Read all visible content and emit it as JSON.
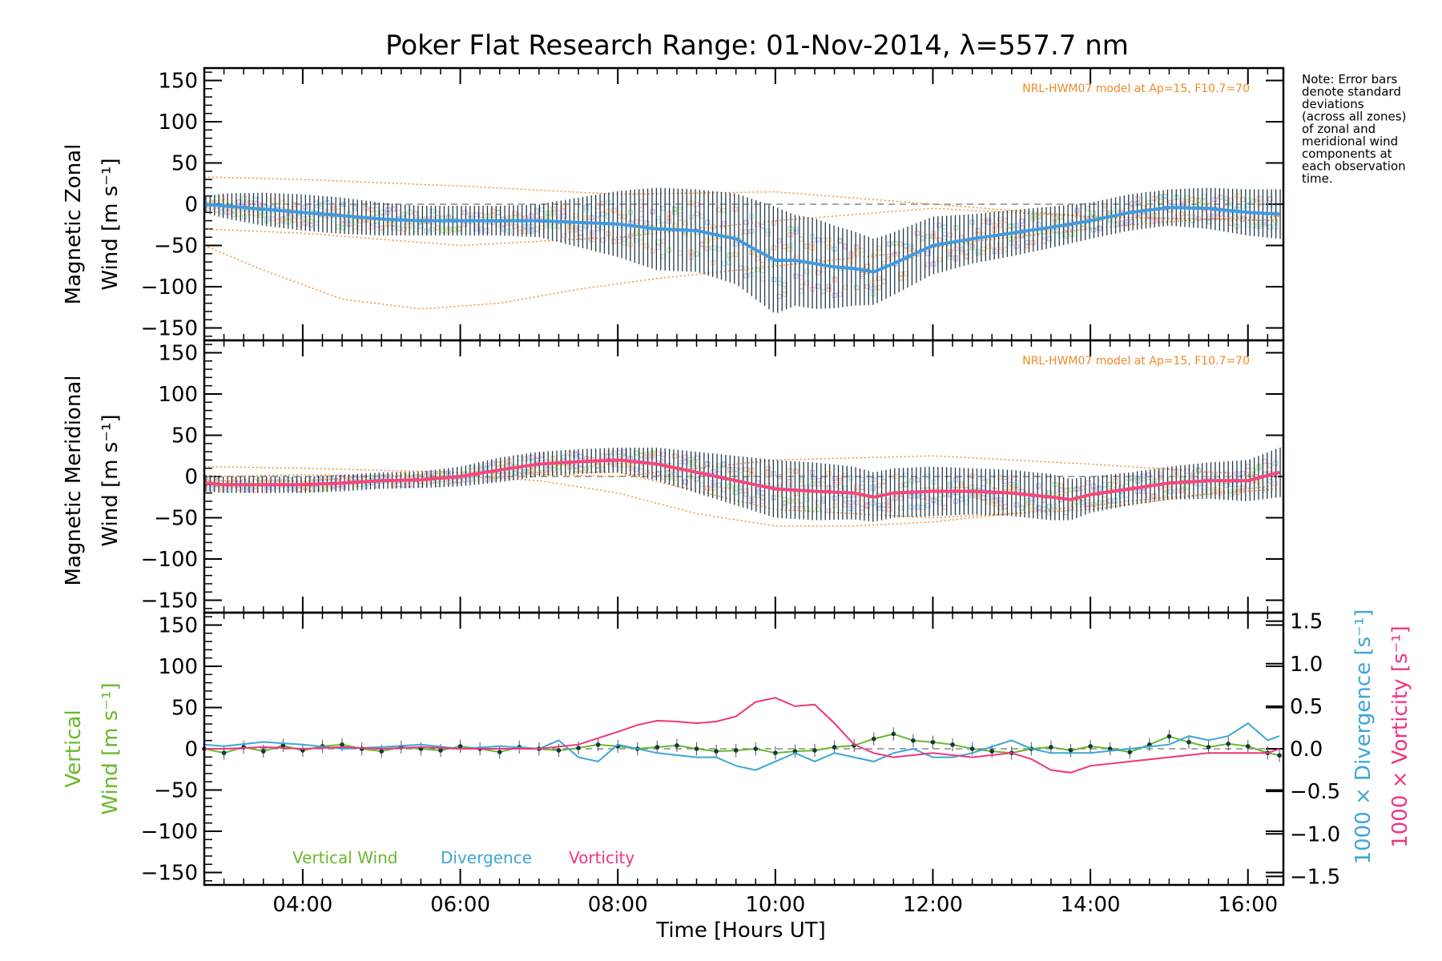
{
  "title": "Poker Flat Research Range: 01-Nov-2014, λ=557.7 nm",
  "note_lines": [
    "Note: Error bars",
    "denote standard",
    "deviations",
    "(across all zones)",
    "of zonal and",
    "meridional wind",
    "components at",
    "each observation",
    "time."
  ],
  "colors": {
    "zonal": "#3f9be0",
    "meridional": "#f7467c",
    "vertical": "#6ab82c",
    "divergence": "#3ea5d8",
    "vorticity": "#f0357e",
    "model": "#f08a2a",
    "errorbar": "#223a4a"
  },
  "chart_data": [
    {
      "type": "line",
      "panel": "zonal",
      "ylabel_line1": "Magnetic Zonal",
      "ylabel_line2": "Wind [m s⁻¹]",
      "ylim": [
        -165,
        165
      ],
      "yticks": [
        150,
        100,
        50,
        0,
        -50,
        -100,
        -150
      ],
      "model_label": "NRL-HWM07 model at Ap=15, F10.7=70",
      "x": [
        2.75,
        3.0,
        3.5,
        4.0,
        4.5,
        5.0,
        5.5,
        6.0,
        6.5,
        7.0,
        7.5,
        8.0,
        8.5,
        9.0,
        9.5,
        9.75,
        10.0,
        10.25,
        10.5,
        10.75,
        11.0,
        11.25,
        11.5,
        12.0,
        12.5,
        13.0,
        13.5,
        14.0,
        14.5,
        15.0,
        15.5,
        16.0,
        16.4
      ],
      "values": [
        0,
        -2,
        -6,
        -10,
        -14,
        -18,
        -20,
        -20,
        -20,
        -20,
        -22,
        -24,
        -30,
        -32,
        -42,
        -55,
        -68,
        -68,
        -72,
        -76,
        -78,
        -82,
        -72,
        -50,
        -42,
        -35,
        -28,
        -20,
        -10,
        -4,
        -5,
        -10,
        -12
      ],
      "error": [
        10,
        15,
        20,
        22,
        22,
        20,
        18,
        18,
        18,
        20,
        30,
        40,
        50,
        50,
        55,
        60,
        65,
        55,
        55,
        50,
        45,
        40,
        38,
        35,
        30,
        28,
        25,
        22,
        22,
        22,
        25,
        28,
        30
      ],
      "model_curves": [
        {
          "x": [
            2.75,
            4,
            6,
            8,
            10,
            12,
            14,
            16.4
          ],
          "values": [
            33,
            30,
            22,
            12,
            15,
            0,
            -15,
            -20
          ]
        },
        {
          "x": [
            2.75,
            4,
            6,
            8,
            10,
            12,
            14,
            16.4
          ],
          "values": [
            -30,
            -35,
            -50,
            -40,
            -20,
            -5,
            -15,
            -20
          ]
        },
        {
          "x": [
            2.75,
            3.5,
            4.5,
            5.5,
            6.5,
            7.5,
            8.5,
            9.5,
            10.5,
            11.5,
            12.5,
            13.5,
            14.5,
            15.5,
            16.4
          ],
          "values": [
            -50,
            -80,
            -115,
            -127,
            -120,
            -103,
            -90,
            -80,
            -70,
            -60,
            -45,
            -35,
            -25,
            -18,
            -15
          ]
        }
      ]
    },
    {
      "type": "line",
      "panel": "meridional",
      "ylabel_line1": "Magnetic Meridional",
      "ylabel_line2": "Wind [m s⁻¹]",
      "ylim": [
        -165,
        165
      ],
      "yticks": [
        150,
        100,
        50,
        0,
        -50,
        -100,
        -150
      ],
      "model_label": "NRL-HWM07 model at Ap=15, F10.7=70",
      "x": [
        2.75,
        3.0,
        3.5,
        4.0,
        4.5,
        5.0,
        5.5,
        6.0,
        6.5,
        7.0,
        7.5,
        8.0,
        8.5,
        9.0,
        9.5,
        10.0,
        10.5,
        11.0,
        11.25,
        11.5,
        12.0,
        12.5,
        13.0,
        13.5,
        13.75,
        14.0,
        14.5,
        15.0,
        15.5,
        16.0,
        16.4
      ],
      "values": [
        -8,
        -10,
        -10,
        -10,
        -8,
        -5,
        -4,
        0,
        8,
        15,
        18,
        20,
        15,
        5,
        -5,
        -15,
        -18,
        -20,
        -25,
        -20,
        -18,
        -18,
        -20,
        -25,
        -28,
        -22,
        -15,
        -8,
        -5,
        -5,
        5
      ],
      "error": [
        10,
        10,
        10,
        10,
        10,
        10,
        10,
        12,
        15,
        15,
        15,
        15,
        20,
        25,
        30,
        35,
        35,
        32,
        30,
        30,
        30,
        28,
        28,
        28,
        25,
        22,
        20,
        20,
        22,
        25,
        30
      ],
      "model_curves": [
        {
          "x": [
            2.75,
            4,
            6,
            8,
            10,
            12,
            14,
            16.4
          ],
          "values": [
            12,
            10,
            5,
            0,
            20,
            25,
            15,
            0
          ]
        },
        {
          "x": [
            2.75,
            4,
            6,
            8,
            10,
            12,
            14,
            16.4
          ],
          "values": [
            -5,
            -5,
            5,
            5,
            -40,
            -50,
            -40,
            -10
          ]
        },
        {
          "x": [
            2.75,
            4,
            6,
            7,
            8,
            9,
            10,
            11,
            12,
            13,
            14,
            15,
            16.4
          ],
          "values": [
            0,
            2,
            0,
            -5,
            -20,
            -45,
            -60,
            -60,
            -55,
            -45,
            -35,
            -25,
            -15
          ]
        }
      ]
    },
    {
      "type": "line",
      "panel": "vertical",
      "ylabel_line1": "Vertical",
      "ylabel_line2": "Wind [m s⁻¹]",
      "ylim": [
        -165,
        165
      ],
      "yticks": [
        150,
        100,
        50,
        0,
        -50,
        -100,
        -150
      ],
      "y2label_divergence": "1000 × Divergence [s⁻¹]",
      "y2label_vorticity": "1000 × Vorticity [s⁻¹]",
      "y2lim": [
        -1.6,
        1.6
      ],
      "y2ticks": [
        1.5,
        1.0,
        0.5,
        0.0,
        -0.5,
        -1.0,
        -1.5
      ],
      "y2ticklabels": [
        "1.5",
        "1.0",
        "0.5",
        "0.0",
        "−0.5",
        "−1.0",
        "−1.5"
      ],
      "legend_position": "bottom-left",
      "series": [
        {
          "name": "Vertical Wind",
          "axis": "left",
          "x": [
            2.75,
            3.0,
            3.25,
            3.5,
            3.75,
            4.0,
            4.25,
            4.5,
            4.75,
            5.0,
            5.25,
            5.5,
            5.75,
            6.0,
            6.25,
            6.5,
            6.75,
            7.0,
            7.25,
            7.5,
            7.75,
            8.0,
            8.25,
            8.5,
            8.75,
            9.0,
            9.25,
            9.5,
            9.75,
            10.0,
            10.25,
            10.5,
            10.75,
            11.0,
            11.25,
            11.5,
            11.75,
            12.0,
            12.25,
            12.5,
            12.75,
            13.0,
            13.25,
            13.5,
            13.75,
            14.0,
            14.25,
            14.5,
            14.75,
            15.0,
            15.25,
            15.5,
            15.75,
            16.0,
            16.25,
            16.4
          ],
          "values": [
            0,
            -5,
            2,
            -3,
            4,
            -2,
            3,
            5,
            0,
            -3,
            2,
            0,
            -2,
            3,
            0,
            -4,
            2,
            0,
            -2,
            1,
            5,
            3,
            0,
            2,
            4,
            0,
            -3,
            -2,
            0,
            -5,
            -3,
            -2,
            2,
            4,
            12,
            18,
            10,
            8,
            5,
            0,
            -3,
            -5,
            0,
            2,
            -2,
            3,
            0,
            -4,
            5,
            15,
            8,
            2,
            6,
            3,
            -5,
            -8
          ]
        },
        {
          "name": "Divergence",
          "axis": "right",
          "x": [
            2.75,
            3.0,
            3.5,
            4.0,
            4.5,
            5.0,
            5.5,
            6.0,
            6.5,
            7.0,
            7.25,
            7.5,
            7.75,
            8.0,
            8.5,
            9.0,
            9.25,
            9.5,
            9.75,
            10.0,
            10.25,
            10.5,
            10.75,
            11.0,
            11.25,
            11.5,
            11.75,
            12.0,
            12.25,
            12.5,
            13.0,
            13.25,
            13.5,
            14.0,
            14.5,
            15.0,
            15.25,
            15.5,
            15.75,
            16.0,
            16.25,
            16.4
          ],
          "values": [
            0.05,
            0.03,
            0.08,
            0.05,
            0.0,
            0.02,
            0.05,
            0.0,
            0.03,
            0.0,
            0.1,
            -0.1,
            -0.15,
            0.05,
            -0.05,
            -0.1,
            -0.1,
            -0.2,
            -0.25,
            -0.15,
            -0.05,
            -0.15,
            -0.05,
            -0.1,
            -0.15,
            -0.05,
            0.0,
            -0.1,
            -0.1,
            -0.05,
            0.1,
            0.0,
            -0.05,
            -0.05,
            0.0,
            0.05,
            0.15,
            0.1,
            0.15,
            0.3,
            0.1,
            0.15
          ]
        },
        {
          "name": "Vorticity",
          "axis": "right",
          "x": [
            2.75,
            3.0,
            3.5,
            4.0,
            4.5,
            5.0,
            5.5,
            6.0,
            6.5,
            7.0,
            7.5,
            8.0,
            8.25,
            8.5,
            8.75,
            9.0,
            9.25,
            9.5,
            9.75,
            10.0,
            10.25,
            10.5,
            10.75,
            11.0,
            11.25,
            11.5,
            12.0,
            12.5,
            13.0,
            13.25,
            13.5,
            13.75,
            14.0,
            14.5,
            15.0,
            15.5,
            16.0,
            16.25,
            16.4
          ],
          "values": [
            0.0,
            0.0,
            0.02,
            0.0,
            0.02,
            0.0,
            0.02,
            0.0,
            0.0,
            0.0,
            0.05,
            0.2,
            0.28,
            0.33,
            0.32,
            0.3,
            0.32,
            0.38,
            0.55,
            0.6,
            0.5,
            0.52,
            0.3,
            0.05,
            -0.05,
            -0.1,
            -0.05,
            -0.1,
            -0.05,
            -0.12,
            -0.25,
            -0.28,
            -0.2,
            -0.15,
            -0.1,
            -0.05,
            -0.05,
            -0.05,
            0.0
          ]
        }
      ]
    }
  ],
  "xaxis": {
    "label": "Time [Hours UT]",
    "xlim": [
      2.75,
      16.45
    ],
    "tick_values": [
      4,
      6,
      8,
      10,
      12,
      14,
      16
    ],
    "tick_labels": [
      "04:00",
      "06:00",
      "08:00",
      "10:00",
      "12:00",
      "14:00",
      "16:00"
    ]
  }
}
